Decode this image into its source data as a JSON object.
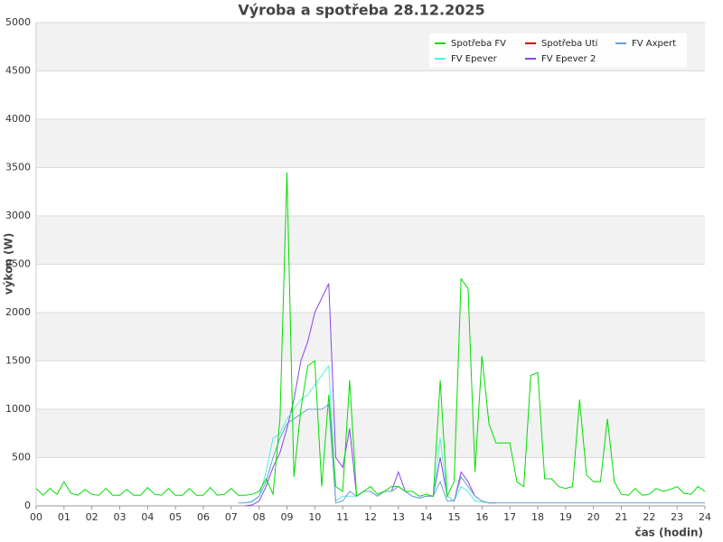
{
  "chart_data": {
    "type": "line",
    "title": "Výroba a spotřeba 28.12.2025",
    "x_label": "čas (hodin)",
    "y_label": "výkon (W)",
    "x": [
      0,
      0.25,
      0.5,
      0.75,
      1,
      1.25,
      1.5,
      1.75,
      2,
      2.25,
      2.5,
      2.75,
      3,
      3.25,
      3.5,
      3.75,
      4,
      4.25,
      4.5,
      4.75,
      5,
      5.25,
      5.5,
      5.75,
      6,
      6.25,
      6.5,
      6.75,
      7,
      7.25,
      7.5,
      7.75,
      8,
      8.25,
      8.5,
      8.75,
      9,
      9.25,
      9.5,
      9.75,
      10,
      10.25,
      10.5,
      10.75,
      11,
      11.25,
      11.5,
      11.75,
      12,
      12.25,
      12.5,
      12.75,
      13,
      13.25,
      13.5,
      13.75,
      14,
      14.25,
      14.5,
      14.75,
      15,
      15.25,
      15.5,
      15.75,
      16,
      16.25,
      16.5,
      16.75,
      17,
      17.25,
      17.5,
      17.75,
      18,
      18.25,
      18.5,
      18.75,
      19,
      19.25,
      19.5,
      19.75,
      20,
      20.25,
      20.5,
      20.75,
      21,
      21.25,
      21.5,
      21.75,
      22,
      22.25,
      22.5,
      22.75,
      23,
      23.25,
      23.5,
      23.75,
      24
    ],
    "series": [
      {
        "name": "Spotřeba FV",
        "color": "#00dd00",
        "values": [
          180,
          110,
          180,
          120,
          250,
          130,
          110,
          170,
          120,
          110,
          180,
          110,
          110,
          170,
          110,
          110,
          190,
          120,
          110,
          180,
          110,
          110,
          180,
          110,
          110,
          190,
          110,
          120,
          180,
          110,
          110,
          120,
          150,
          280,
          120,
          900,
          3450,
          300,
          1000,
          1450,
          1500,
          200,
          1150,
          200,
          150,
          1300,
          100,
          150,
          200,
          120,
          150,
          200,
          200,
          150,
          150,
          100,
          120,
          100,
          1300,
          100,
          250,
          2350,
          2250,
          350,
          1550,
          850,
          650,
          650,
          650,
          250,
          200,
          1350,
          1380,
          280,
          280,
          200,
          180,
          200,
          1100,
          320,
          250,
          250,
          900,
          250,
          120,
          110,
          180,
          110,
          120,
          180,
          150,
          170,
          200,
          130,
          120,
          200,
          150
        ]
      },
      {
        "name": "Spotřeba Uti",
        "color": "#cc0000",
        "values": [
          null,
          null,
          null,
          null,
          null,
          null,
          null,
          null,
          null,
          null,
          null,
          null,
          null,
          null,
          null,
          null,
          null,
          null,
          null,
          null,
          null,
          null,
          null,
          null,
          null,
          null,
          null,
          null,
          null,
          null,
          null,
          null,
          null,
          null,
          null,
          null,
          null,
          null,
          null,
          null,
          null,
          null,
          null,
          null,
          null,
          null,
          null,
          null,
          null,
          null,
          null,
          null,
          null,
          null,
          null,
          null,
          null,
          null,
          null,
          null,
          null,
          null,
          null,
          null,
          null,
          null,
          null,
          null,
          null,
          null,
          null,
          null,
          null,
          null,
          null,
          null,
          null,
          null,
          null,
          null,
          null,
          null,
          null,
          null,
          null,
          null,
          null,
          null,
          null,
          null,
          null,
          null,
          null,
          null,
          null,
          null,
          null
        ]
      },
      {
        "name": "FV Axpert",
        "color": "#6fa0d0",
        "values": [
          null,
          null,
          null,
          null,
          null,
          null,
          null,
          null,
          null,
          null,
          null,
          null,
          null,
          null,
          null,
          null,
          null,
          null,
          null,
          null,
          null,
          null,
          null,
          null,
          null,
          null,
          null,
          null,
          null,
          30,
          30,
          40,
          100,
          250,
          500,
          700,
          850,
          900,
          950,
          1000,
          1000,
          1000,
          1050,
          30,
          50,
          150,
          100,
          150,
          150,
          100,
          150,
          150,
          200,
          150,
          100,
          80,
          100,
          100,
          250,
          50,
          50,
          300,
          200,
          100,
          50,
          30,
          30,
          30,
          30,
          30,
          30,
          30,
          30,
          30,
          30,
          30,
          30,
          30,
          30,
          30,
          30,
          30,
          30,
          30,
          30,
          30,
          30,
          30,
          30,
          30,
          30,
          30,
          30,
          30,
          30,
          30,
          30
        ]
      },
      {
        "name": "FV Epever",
        "color": "#55eedd",
        "values": [
          null,
          null,
          null,
          null,
          null,
          null,
          null,
          null,
          null,
          null,
          null,
          null,
          null,
          null,
          null,
          null,
          null,
          null,
          null,
          null,
          null,
          null,
          null,
          null,
          null,
          null,
          null,
          null,
          null,
          null,
          30,
          50,
          100,
          350,
          700,
          750,
          900,
          1000,
          1100,
          1150,
          1250,
          1350,
          1450,
          50,
          100,
          100,
          100,
          150,
          150,
          100,
          150,
          150,
          200,
          150,
          100,
          80,
          100,
          100,
          700,
          100,
          50,
          200,
          150,
          50,
          40,
          30,
          30,
          null,
          null,
          null,
          null,
          null,
          null,
          null,
          null,
          null,
          null,
          null,
          null,
          null,
          null,
          null,
          null,
          null,
          null,
          null,
          null,
          null,
          null,
          null,
          null,
          null,
          null,
          null,
          null,
          null,
          null
        ]
      },
      {
        "name": "FV Epever 2",
        "color": "#8844ee",
        "values": [
          null,
          null,
          null,
          null,
          null,
          null,
          null,
          null,
          null,
          null,
          null,
          null,
          null,
          null,
          null,
          null,
          null,
          null,
          null,
          null,
          null,
          null,
          null,
          null,
          null,
          null,
          null,
          null,
          null,
          null,
          0,
          10,
          50,
          200,
          400,
          550,
          800,
          1100,
          1500,
          1700,
          2000,
          2150,
          2300,
          500,
          400,
          800,
          100,
          150,
          150,
          100,
          150,
          150,
          350,
          150,
          100,
          80,
          100,
          100,
          500,
          100,
          50,
          350,
          250,
          100,
          50,
          30,
          30,
          null,
          null,
          null,
          null,
          null,
          null,
          null,
          null,
          null,
          null,
          null,
          null,
          null,
          null,
          null,
          null,
          null,
          null,
          null,
          null,
          null,
          null,
          null,
          null,
          null,
          null,
          null,
          null,
          null,
          null
        ]
      }
    ],
    "xlim": [
      0,
      24
    ],
    "xticks": [
      {
        "value": 0,
        "label": "00"
      },
      {
        "value": 1,
        "label": "01"
      },
      {
        "value": 2,
        "label": "02"
      },
      {
        "value": 3,
        "label": "03"
      },
      {
        "value": 4,
        "label": "04"
      },
      {
        "value": 5,
        "label": "05"
      },
      {
        "value": 6,
        "label": "06"
      },
      {
        "value": 7,
        "label": "07"
      },
      {
        "value": 8,
        "label": "08"
      },
      {
        "value": 9,
        "label": "09"
      },
      10,
      11,
      12,
      13,
      14,
      15,
      16,
      17,
      18,
      19,
      20,
      21,
      22,
      23,
      24
    ],
    "ylim": [
      0,
      5000
    ],
    "yticks": [
      0,
      500,
      1000,
      1500,
      2000,
      2500,
      3000,
      3500,
      4000,
      4500,
      5000
    ],
    "grid": true,
    "legend": "top-right"
  }
}
